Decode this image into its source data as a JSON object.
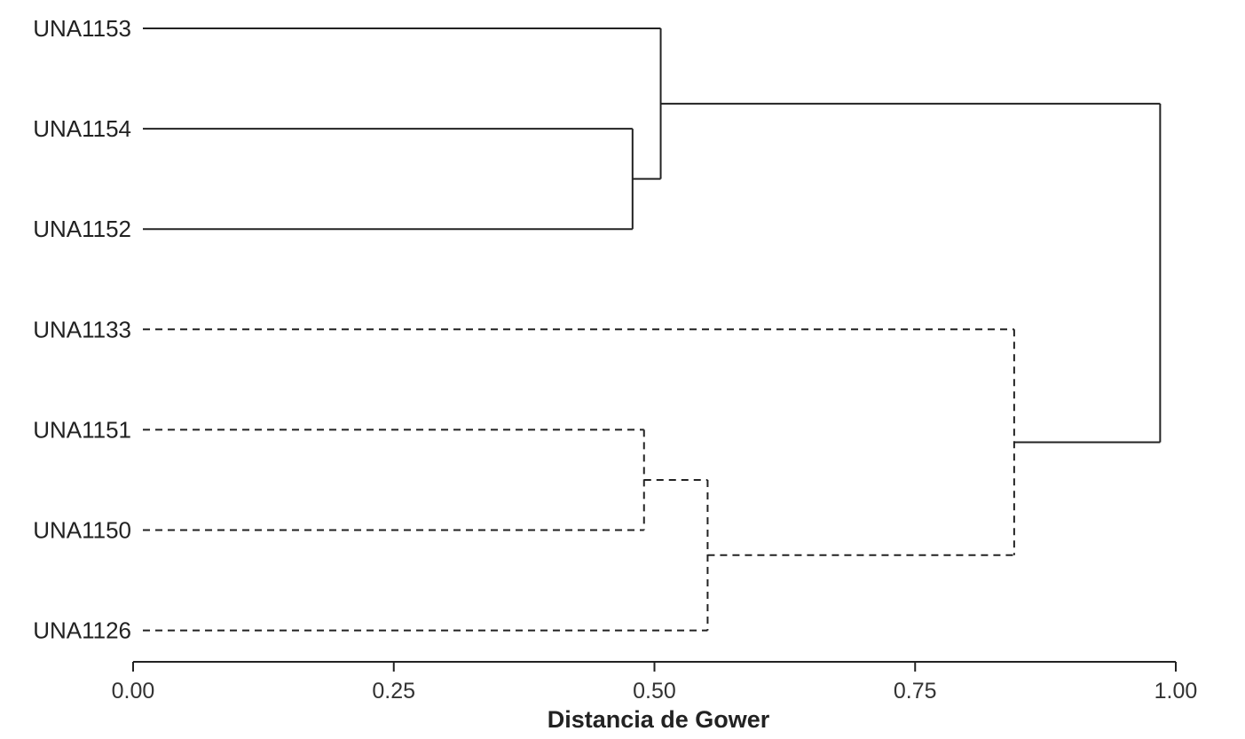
{
  "chart_data": {
    "type": "dendrogram",
    "orientation": "horizontal",
    "xlabel": "Distancia de Gower",
    "xlim": [
      0.0,
      1.0
    ],
    "xticks": [
      "0.00",
      "0.25",
      "0.50",
      "0.75",
      "1.00"
    ],
    "xtick_values": [
      0.0,
      0.25,
      0.5,
      0.75,
      1.0
    ],
    "line_color": "#222222",
    "leaves": [
      "UNA1153",
      "UNA1154",
      "UNA1152",
      "UNA1133",
      "UNA1151",
      "UNA1150",
      "UNA1126"
    ],
    "merges": [
      {
        "id": "m1",
        "children": [
          "UNA1154",
          "UNA1152"
        ],
        "height": 0.479,
        "style": "solid"
      },
      {
        "id": "m2",
        "children": [
          "UNA1153",
          "m1"
        ],
        "height": 0.506,
        "style": "solid"
      },
      {
        "id": "m3",
        "children": [
          "UNA1151",
          "UNA1150"
        ],
        "height": 0.49,
        "style": "dashed"
      },
      {
        "id": "m4",
        "children": [
          "m3",
          "UNA1126"
        ],
        "height": 0.551,
        "style": "dashed"
      },
      {
        "id": "m5",
        "children": [
          "UNA1133",
          "m4"
        ],
        "height": 0.845,
        "style": "dashed"
      },
      {
        "id": "m6",
        "children": [
          "m2",
          "m5"
        ],
        "height": 0.985,
        "style": "solid"
      }
    ]
  }
}
